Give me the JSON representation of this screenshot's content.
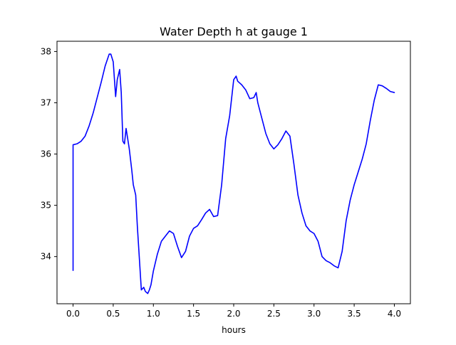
{
  "chart_data": {
    "type": "line",
    "title": "Water Depth h at gauge 1",
    "xlabel": "hours",
    "ylabel": "",
    "xlim": [
      -0.2,
      4.2
    ],
    "ylim": [
      33.08,
      38.2
    ],
    "x_ticks": [
      0.0,
      0.5,
      1.0,
      1.5,
      2.0,
      2.5,
      3.0,
      3.5,
      4.0
    ],
    "x_tick_labels": [
      "0.0",
      "0.5",
      "1.0",
      "1.5",
      "2.0",
      "2.5",
      "3.0",
      "3.5",
      "4.0"
    ],
    "y_ticks": [
      34,
      35,
      36,
      37,
      38
    ],
    "y_tick_labels": [
      "34",
      "35",
      "36",
      "37",
      "38"
    ],
    "grid": false,
    "series": [
      {
        "color": "#0000ff",
        "x": [
          0.0,
          0.0,
          0.05,
          0.1,
          0.15,
          0.2,
          0.25,
          0.3,
          0.35,
          0.4,
          0.45,
          0.47,
          0.5,
          0.53,
          0.55,
          0.58,
          0.6,
          0.62,
          0.64,
          0.66,
          0.68,
          0.7,
          0.73,
          0.75,
          0.78,
          0.8,
          0.82,
          0.85,
          0.88,
          0.9,
          0.93,
          0.95,
          0.97,
          1.0,
          1.05,
          1.1,
          1.15,
          1.2,
          1.22,
          1.25,
          1.3,
          1.35,
          1.4,
          1.45,
          1.5,
          1.55,
          1.6,
          1.65,
          1.7,
          1.75,
          1.8,
          1.85,
          1.9,
          1.95,
          2.0,
          2.03,
          2.05,
          2.1,
          2.15,
          2.2,
          2.25,
          2.28,
          2.3,
          2.35,
          2.4,
          2.45,
          2.5,
          2.55,
          2.6,
          2.65,
          2.7,
          2.75,
          2.8,
          2.85,
          2.9,
          2.95,
          3.0,
          3.05,
          3.1,
          3.15,
          3.2,
          3.25,
          3.3,
          3.35,
          3.4,
          3.45,
          3.5,
          3.55,
          3.6,
          3.65,
          3.7,
          3.75,
          3.8,
          3.85,
          3.9,
          3.95,
          4.0
        ],
        "values": [
          33.73,
          36.18,
          36.2,
          36.25,
          36.35,
          36.55,
          36.8,
          37.1,
          37.4,
          37.72,
          37.95,
          37.95,
          37.8,
          37.12,
          37.45,
          37.65,
          37.2,
          36.25,
          36.2,
          36.5,
          36.3,
          36.1,
          35.7,
          35.4,
          35.2,
          34.6,
          34.1,
          33.35,
          33.4,
          33.32,
          33.28,
          33.35,
          33.45,
          33.72,
          34.05,
          34.3,
          34.4,
          34.5,
          34.48,
          34.45,
          34.2,
          33.98,
          34.1,
          34.4,
          34.55,
          34.6,
          34.72,
          34.85,
          34.92,
          34.78,
          34.8,
          35.4,
          36.3,
          36.75,
          37.45,
          37.52,
          37.42,
          37.35,
          37.25,
          37.08,
          37.1,
          37.2,
          37.0,
          36.7,
          36.4,
          36.2,
          36.1,
          36.18,
          36.3,
          36.45,
          36.35,
          35.8,
          35.2,
          34.85,
          34.6,
          34.5,
          34.45,
          34.3,
          34.0,
          33.92,
          33.88,
          33.82,
          33.78,
          34.1,
          34.7,
          35.1,
          35.4,
          35.65,
          35.9,
          36.2,
          36.65,
          37.05,
          37.35,
          37.33,
          37.28,
          37.22,
          37.2
        ]
      }
    ]
  }
}
